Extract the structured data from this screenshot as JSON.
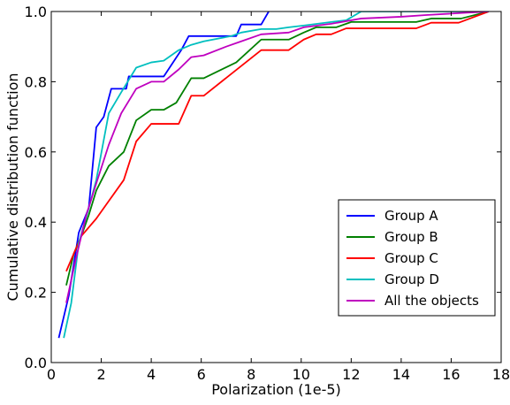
{
  "chart_data": {
    "type": "line",
    "xlabel": "Polarization (1e-5)",
    "ylabel": "Cumulative distribution function",
    "xlim": [
      0,
      18
    ],
    "ylim": [
      0,
      1.0
    ],
    "xticks": [
      0,
      2,
      4,
      6,
      8,
      10,
      12,
      14,
      16,
      18
    ],
    "yticks": [
      0.0,
      0.2,
      0.4,
      0.6,
      0.8,
      1.0
    ],
    "xtick_labels": [
      "0",
      "2",
      "4",
      "6",
      "8",
      "10",
      "12",
      "14",
      "16",
      "18"
    ],
    "ytick_labels": [
      "0.0",
      "0.2",
      "0.4",
      "0.6",
      "0.8",
      "1.0"
    ],
    "grid": false,
    "legend_position": "bottom-right",
    "series": [
      {
        "name": "Group A",
        "color": "#0000ff",
        "points": [
          [
            0.3,
            0.07
          ],
          [
            0.7,
            0.19
          ],
          [
            1.1,
            0.37
          ],
          [
            1.5,
            0.44
          ],
          [
            1.8,
            0.67
          ],
          [
            2.1,
            0.7
          ],
          [
            2.4,
            0.78
          ],
          [
            2.6,
            0.78
          ],
          [
            3.0,
            0.78
          ],
          [
            3.1,
            0.815
          ],
          [
            3.8,
            0.815
          ],
          [
            4.5,
            0.815
          ],
          [
            5.2,
            0.89
          ],
          [
            5.5,
            0.93
          ],
          [
            6.3,
            0.93
          ],
          [
            7.4,
            0.93
          ],
          [
            7.6,
            0.963
          ],
          [
            8.4,
            0.963
          ],
          [
            8.7,
            1.0
          ]
        ]
      },
      {
        "name": "Group B",
        "color": "#008000",
        "points": [
          [
            0.6,
            0.22
          ],
          [
            0.9,
            0.31
          ],
          [
            1.2,
            0.36
          ],
          [
            1.5,
            0.42
          ],
          [
            1.8,
            0.49
          ],
          [
            2.3,
            0.56
          ],
          [
            2.9,
            0.6
          ],
          [
            3.4,
            0.69
          ],
          [
            4.0,
            0.72
          ],
          [
            4.5,
            0.72
          ],
          [
            5.0,
            0.74
          ],
          [
            5.6,
            0.81
          ],
          [
            6.1,
            0.81
          ],
          [
            7.4,
            0.855
          ],
          [
            8.4,
            0.92
          ],
          [
            9.5,
            0.92
          ],
          [
            10.1,
            0.94
          ],
          [
            10.6,
            0.955
          ],
          [
            11.4,
            0.955
          ],
          [
            12.0,
            0.97
          ],
          [
            14.6,
            0.97
          ],
          [
            15.2,
            0.98
          ],
          [
            16.4,
            0.98
          ],
          [
            17.5,
            1.0
          ]
        ]
      },
      {
        "name": "Group C",
        "color": "#ff0000",
        "points": [
          [
            0.6,
            0.26
          ],
          [
            1.2,
            0.36
          ],
          [
            1.8,
            0.41
          ],
          [
            2.4,
            0.47
          ],
          [
            2.9,
            0.52
          ],
          [
            3.4,
            0.63
          ],
          [
            4.0,
            0.68
          ],
          [
            4.5,
            0.68
          ],
          [
            5.1,
            0.68
          ],
          [
            5.6,
            0.76
          ],
          [
            6.1,
            0.76
          ],
          [
            8.4,
            0.89
          ],
          [
            9.5,
            0.89
          ],
          [
            10.1,
            0.92
          ],
          [
            10.6,
            0.935
          ],
          [
            11.2,
            0.935
          ],
          [
            11.8,
            0.952
          ],
          [
            14.6,
            0.952
          ],
          [
            15.2,
            0.968
          ],
          [
            16.3,
            0.968
          ],
          [
            17.5,
            1.0
          ]
        ]
      },
      {
        "name": "Group D",
        "color": "#00bfbf",
        "points": [
          [
            0.5,
            0.07
          ],
          [
            0.8,
            0.17
          ],
          [
            1.1,
            0.34
          ],
          [
            1.5,
            0.44
          ],
          [
            1.8,
            0.52
          ],
          [
            2.3,
            0.71
          ],
          [
            2.8,
            0.77
          ],
          [
            3.4,
            0.84
          ],
          [
            4.0,
            0.855
          ],
          [
            4.5,
            0.86
          ],
          [
            5.1,
            0.89
          ],
          [
            5.6,
            0.905
          ],
          [
            6.1,
            0.915
          ],
          [
            7.2,
            0.93
          ],
          [
            7.6,
            0.94
          ],
          [
            8.4,
            0.95
          ],
          [
            9.0,
            0.95
          ],
          [
            9.5,
            0.955
          ],
          [
            10.1,
            0.96
          ],
          [
            11.2,
            0.97
          ],
          [
            11.8,
            0.975
          ],
          [
            12.4,
            1.0
          ],
          [
            14.6,
            1.0
          ],
          [
            17.5,
            1.0
          ]
        ]
      },
      {
        "name": "All the objects",
        "color": "#bf00bf",
        "points": [
          [
            0.6,
            0.17
          ],
          [
            1.0,
            0.3
          ],
          [
            1.4,
            0.42
          ],
          [
            1.8,
            0.51
          ],
          [
            2.3,
            0.62
          ],
          [
            2.8,
            0.71
          ],
          [
            3.4,
            0.78
          ],
          [
            4.0,
            0.8
          ],
          [
            4.5,
            0.8
          ],
          [
            5.1,
            0.835
          ],
          [
            5.6,
            0.87
          ],
          [
            6.1,
            0.875
          ],
          [
            7.0,
            0.9
          ],
          [
            7.6,
            0.915
          ],
          [
            8.4,
            0.935
          ],
          [
            9.5,
            0.94
          ],
          [
            10.1,
            0.955
          ],
          [
            11.2,
            0.965
          ],
          [
            12.4,
            0.98
          ],
          [
            14.0,
            0.985
          ],
          [
            15.0,
            0.99
          ],
          [
            17.5,
            1.0
          ]
        ]
      }
    ]
  }
}
